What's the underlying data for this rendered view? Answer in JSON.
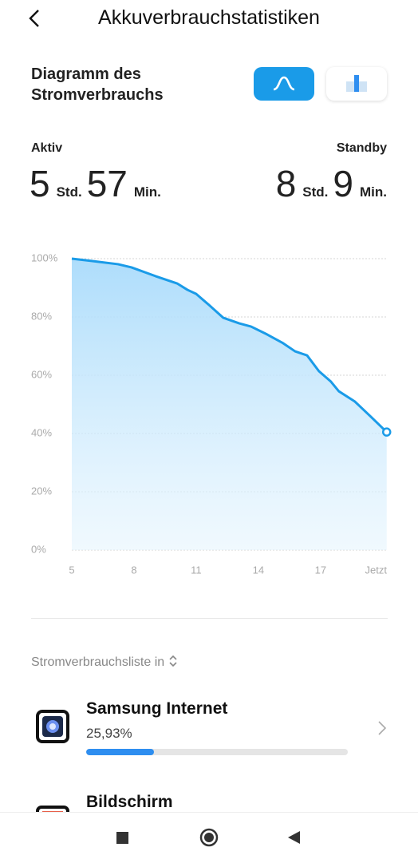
{
  "header": {
    "title": "Akkuverbrauchstatistiken"
  },
  "section": {
    "title": "Diagramm des Stromverbrauchs"
  },
  "stats": {
    "active": {
      "label": "Aktiv",
      "hours": 5,
      "hours_unit": "Std.",
      "minutes": 57,
      "minutes_unit": "Min."
    },
    "standby": {
      "label": "Standby",
      "hours": 8,
      "hours_unit": "Std.",
      "minutes": 9,
      "minutes_unit": "Min."
    }
  },
  "chart_data": {
    "type": "line",
    "color": "#1a9be8",
    "grid": true,
    "x": [
      5,
      5.96,
      7.23,
      7.88,
      9.04,
      10.08,
      10.58,
      11,
      11.62,
      12.31,
      13.08,
      13.65,
      14.42,
      15.19,
      15.77,
      16.35,
      16.92,
      17.5,
      17.88,
      18.65,
      19.42,
      20.19
    ],
    "values": [
      100,
      99.2,
      98.1,
      97,
      94,
      91.5,
      89.3,
      87.9,
      84.1,
      79.7,
      77.8,
      76.7,
      74,
      71,
      68.2,
      66.8,
      61.4,
      57.8,
      54.5,
      51,
      45.8,
      40.5
    ],
    "xlim": [
      5,
      20.2
    ],
    "xticks": [
      5,
      8,
      11,
      14,
      17,
      {
        "value": 20.2,
        "label": "Jetzt"
      }
    ],
    "ylim": [
      0,
      100
    ],
    "yticks": [
      {
        "value": 0,
        "label": "0%"
      },
      {
        "value": 20,
        "label": "20%"
      },
      {
        "value": 40,
        "label": "40%"
      },
      {
        "value": 60,
        "label": "60%"
      },
      {
        "value": 80,
        "label": "80%"
      },
      {
        "value": 100,
        "label": "100%"
      }
    ]
  },
  "list": {
    "title": "Stromverbrauchsliste in",
    "items": [
      {
        "name": "Samsung Internet",
        "value": 25.93,
        "value_label": "25,93%"
      },
      {
        "name": "Bildschirm"
      }
    ]
  }
}
